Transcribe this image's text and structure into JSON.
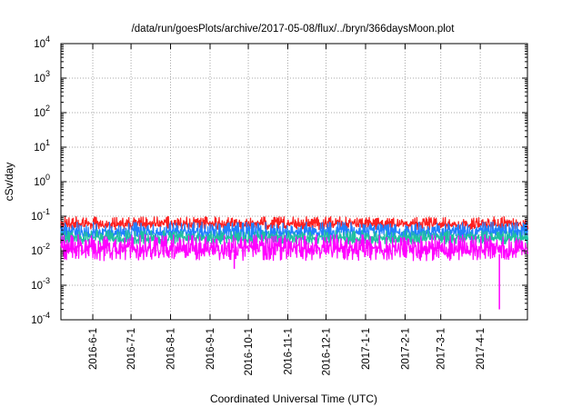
{
  "chart_data": {
    "type": "line",
    "title": "/data/run/goesPlots/archive/2017-05-08/flux/../bryn/366daysMoon.plot",
    "xlabel": "Coordinated Universal Time (UTC)",
    "ylabel": "cSv/day",
    "y_scale": "log",
    "ylim": [
      0.0001,
      10000
    ],
    "xlim": [
      "2016-05-07",
      "2017-05-08"
    ],
    "grid": true,
    "x_ticks": [
      {
        "date": "2016-06-01",
        "label": "2016-6-1"
      },
      {
        "date": "2016-07-01",
        "label": "2016-7-1"
      },
      {
        "date": "2016-08-01",
        "label": "2016-8-1"
      },
      {
        "date": "2016-09-01",
        "label": "2016-9-1"
      },
      {
        "date": "2016-10-01",
        "label": "2016-10-1"
      },
      {
        "date": "2016-11-01",
        "label": "2016-11-1"
      },
      {
        "date": "2016-12-01",
        "label": "2016-12-1"
      },
      {
        "date": "2017-01-01",
        "label": "2017-1-1"
      },
      {
        "date": "2017-02-01",
        "label": "2017-2-1"
      },
      {
        "date": "2017-03-01",
        "label": "2017-3-1"
      },
      {
        "date": "2017-04-01",
        "label": "2017-4-1"
      }
    ],
    "y_ticks": [
      {
        "value": 0.0001,
        "base": "10",
        "exp": "-4"
      },
      {
        "value": 0.001,
        "base": "10",
        "exp": "-3"
      },
      {
        "value": 0.01,
        "base": "10",
        "exp": "-2"
      },
      {
        "value": 0.1,
        "base": "10",
        "exp": "-1"
      },
      {
        "value": 1,
        "base": "10",
        "exp": "0"
      },
      {
        "value": 10,
        "base": "10",
        "exp": "1"
      },
      {
        "value": 100,
        "base": "10",
        "exp": "2"
      },
      {
        "value": 1000,
        "base": "10",
        "exp": "3"
      },
      {
        "value": 10000,
        "base": "10",
        "exp": "4"
      }
    ],
    "series": [
      {
        "color": "#ff2020",
        "typical_low": 0.04,
        "typical_high": 0.1
      },
      {
        "color": "#2080ff",
        "typical_low": 0.02,
        "typical_high": 0.07
      },
      {
        "color": "#20c0a0",
        "typical_low": 0.015,
        "typical_high": 0.04
      },
      {
        "color": "#ff00ff",
        "typical_low": 0.005,
        "typical_high": 0.03
      }
    ],
    "annotations": [
      {
        "series_color": "#ff00ff",
        "date": "2017-04-16",
        "value": 0.0002,
        "kind": "dip"
      },
      {
        "series_color": "#ff00ff",
        "date": "2016-09-20",
        "value": 0.003,
        "kind": "dip"
      }
    ]
  }
}
